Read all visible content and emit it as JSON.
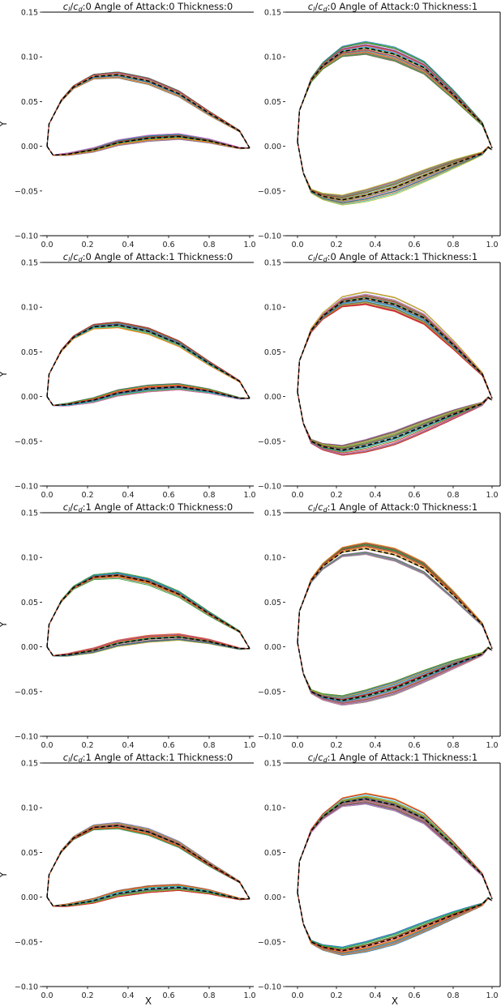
{
  "chart_data": {
    "type": "line",
    "layout": "4x2 grid",
    "xlabel": "X",
    "ylabel": "Y",
    "xlim": [
      -0.03,
      1.03
    ],
    "ylim": [
      -0.1,
      0.15
    ],
    "xticks": [
      "0.0",
      "0.2",
      "0.4",
      "0.6",
      "0.8",
      "1.0"
    ],
    "yticks": [
      "0.15",
      "0.10",
      "0.05",
      "0.00",
      "−0.05",
      "−0.10"
    ],
    "ratio_symbol": {
      "num": "c",
      "num_sub": "l",
      "den": "c",
      "den_sub": "d"
    },
    "mean_style": "black dashed",
    "sample_colors": [
      "#1f77b4",
      "#ff7f0e",
      "#2ca02c",
      "#d62728",
      "#9467bd",
      "#8c564b",
      "#e377c2",
      "#7f7f7f",
      "#bcbd22",
      "#17becf"
    ],
    "shapes": {
      "thickness_0": {
        "upper": {
          "x": [
            0,
            0.01,
            0.07,
            0.13,
            0.23,
            0.35,
            0.5,
            0.65,
            0.8,
            0.95,
            1.0
          ],
          "y": [
            0,
            0.025,
            0.051,
            0.066,
            0.078,
            0.08,
            0.073,
            0.059,
            0.037,
            0.017,
            -0.002
          ]
        },
        "lower": {
          "x": [
            0,
            0.03,
            0.1,
            0.23,
            0.35,
            0.5,
            0.65,
            0.8,
            0.95,
            1.0
          ],
          "y": [
            0,
            -0.01,
            -0.009,
            -0.004,
            0.004,
            0.009,
            0.011,
            0.006,
            -0.002,
            -0.002
          ]
        },
        "spread": 0.004
      },
      "thickness_1": {
        "upper": {
          "x": [
            0,
            0.01,
            0.07,
            0.13,
            0.23,
            0.35,
            0.5,
            0.65,
            0.8,
            0.95,
            1.0
          ],
          "y": [
            0.005,
            0.04,
            0.074,
            0.09,
            0.106,
            0.11,
            0.103,
            0.088,
            0.058,
            0.025,
            -0.002
          ]
        },
        "lower": {
          "x": [
            0,
            0.03,
            0.07,
            0.13,
            0.23,
            0.35,
            0.5,
            0.65,
            0.8,
            0.95,
            0.98,
            1.0
          ],
          "y": [
            0.005,
            -0.03,
            -0.05,
            -0.056,
            -0.06,
            -0.055,
            -0.046,
            -0.033,
            -0.02,
            -0.008,
            -0.001,
            -0.004
          ]
        },
        "spread": 0.008
      }
    },
    "panels": [
      {
        "title": ":0 Angle of Attack:0 Thickness:0",
        "shape": "thickness_0"
      },
      {
        "title": ":0 Angle of Attack:0 Thickness:1",
        "shape": "thickness_1"
      },
      {
        "title": ":0 Angle of Attack:1 Thickness:0",
        "shape": "thickness_0"
      },
      {
        "title": ":0 Angle of Attack:1 Thickness:1",
        "shape": "thickness_1"
      },
      {
        "title": ":1 Angle of Attack:0 Thickness:0",
        "shape": "thickness_0"
      },
      {
        "title": ":1 Angle of Attack:0 Thickness:1",
        "shape": "thickness_1"
      },
      {
        "title": ":1 Angle of Attack:1 Thickness:0",
        "shape": "thickness_0"
      },
      {
        "title": ":1 Angle of Attack:1 Thickness:1",
        "shape": "thickness_1"
      }
    ]
  }
}
